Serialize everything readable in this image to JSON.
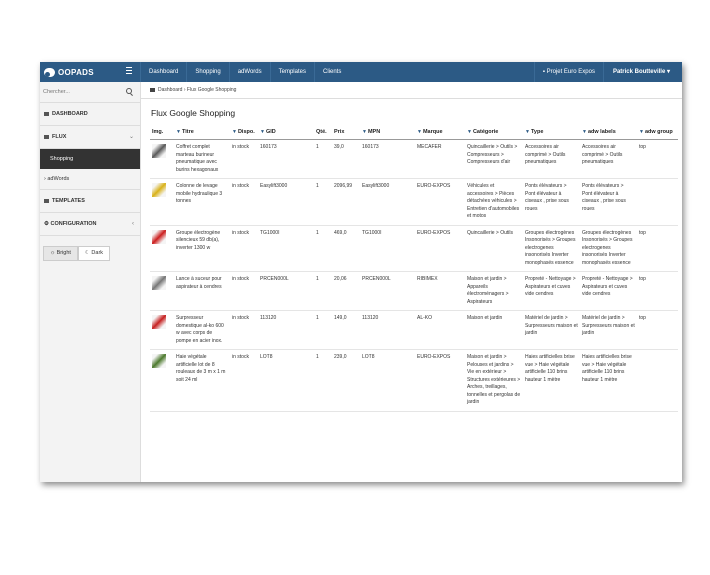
{
  "app": {
    "logo_text": "OOPADS"
  },
  "nav": [
    "Dashboard",
    "Shopping",
    "adWords",
    "Templates",
    "Clients"
  ],
  "project": "Projet Euro Expos",
  "user": "Patrick Boutteville",
  "search": {
    "placeholder": "Chercher..."
  },
  "sidebar": {
    "dashboard": "DASHBOARD",
    "flux": "FLUX",
    "shopping": "Shopping",
    "adwords": "adWords",
    "templates": "TEMPLATES",
    "configuration": "CONFIGURATION",
    "bright": "Bright",
    "dark": "Dark"
  },
  "breadcrumb": {
    "home": "Dashboard",
    "current": "Flux Google Shopping"
  },
  "page_title": "Flux Google Shopping",
  "table": {
    "headers": [
      "Img.",
      "Titre",
      "Dispo.",
      "GID",
      "Qté.",
      "Prix",
      "MPN",
      "Marque",
      "Catégorie",
      "Type",
      "adw labels",
      "adw group"
    ],
    "rows": [
      {
        "titre": "Coffret complet marteau burineur pneumatique avec burins hexagonaux",
        "dispo": "in stock",
        "gid": "160173",
        "qte": "1",
        "prix": "39,0",
        "mpn": "160173",
        "marque": "MECAFER",
        "categorie": "Quincaillerie > Outils > Compresseurs > Compresseurs d'air",
        "type": "Accessoires air comprimé > Outils pneumatiques",
        "labels": "Accessoires air comprimé > Outils pneumatiques",
        "group": "top",
        "color": "#5a5a5a"
      },
      {
        "titre": "Colonne de levage mobile hydraulique 3 tonnes",
        "dispo": "in stock",
        "gid": "Easylift3000",
        "qte": "1",
        "prix": "2096,99",
        "mpn": "Easylift3000",
        "marque": "EURO-EXPOS",
        "categorie": "Véhicules et accessoires > Pièces détachées véhicules > Entretien d'automobiles et motos",
        "type": "Ponts élévateurs > Pont élévateur à ciseaux , prise sous roues",
        "labels": "Ponts élévateurs > Pont élévateur à ciseaux , prise sous roues",
        "group": "",
        "color": "#d9b21a"
      },
      {
        "titre": "Groupe électrogène silencieux 59 db(a), inverter 1300 w",
        "dispo": "in stock",
        "gid": "TG1000I",
        "qte": "1",
        "prix": "469,0",
        "mpn": "TG1000I",
        "marque": "EURO-EXPOS",
        "categorie": "Quincaillerie > Outils",
        "type": "Groupes électrogènes Insonorisés > Groupes electrogenes insonorisés Inverter monophasés essence",
        "labels": "Groupes électrogènes Insonorisés > Groupes electrogenes insonorisés Inverter monophasés essence",
        "group": "top",
        "color": "#cc1f1f"
      },
      {
        "titre": "Lance à suceur pour aspirateur à cendres",
        "dispo": "in stock",
        "gid": "PRCEN000L",
        "qte": "1",
        "prix": "20,06",
        "mpn": "PRCEN000L",
        "marque": "RIBIMEX",
        "categorie": "Maison et jardin > Appareils électroménagers > Aspirateurs",
        "type": "Propreté - Nettoyage > Aspirateurs et cuves vide cendres",
        "labels": "Propreté - Nettoyage > Aspirateurs et cuves vide cendres",
        "group": "top",
        "color": "#777777"
      },
      {
        "titre": "Surpresseur domestique al-ko 600 w avec corps de pompe en acier inox.",
        "dispo": "in stock",
        "gid": "113120",
        "qte": "1",
        "prix": "149,0",
        "mpn": "113120",
        "marque": "AL-KO",
        "categorie": "Maison et jardin",
        "type": "Matériel de jardin > Surpresseurs maison et jardin",
        "labels": "Matériel de jardin > Surpresseurs maison et jardin",
        "group": "top",
        "color": "#c72222"
      },
      {
        "titre": "Haie végétale artificielle lot de 8 rouleaux de 3 m x 1 m soit 24 ml",
        "dispo": "in stock",
        "gid": "LOT8",
        "qte": "1",
        "prix": "239,0",
        "mpn": "LOT8",
        "marque": "EURO-EXPOS",
        "categorie": "Maison et jardin > Pelouses et jardins > Vie en extérieur > Structures extérieures > Arches, treillages, tonnelles et pergolas de jardin",
        "type": "Haies artificielles brise vue > Haie végétale artificielle 110 brins hauteur 1 mètre",
        "labels": "Haies artificielles brise vue > Haie végétale artificielle 110 brins hauteur 1 mètre",
        "group": "",
        "color": "#4d7a2e"
      }
    ]
  }
}
